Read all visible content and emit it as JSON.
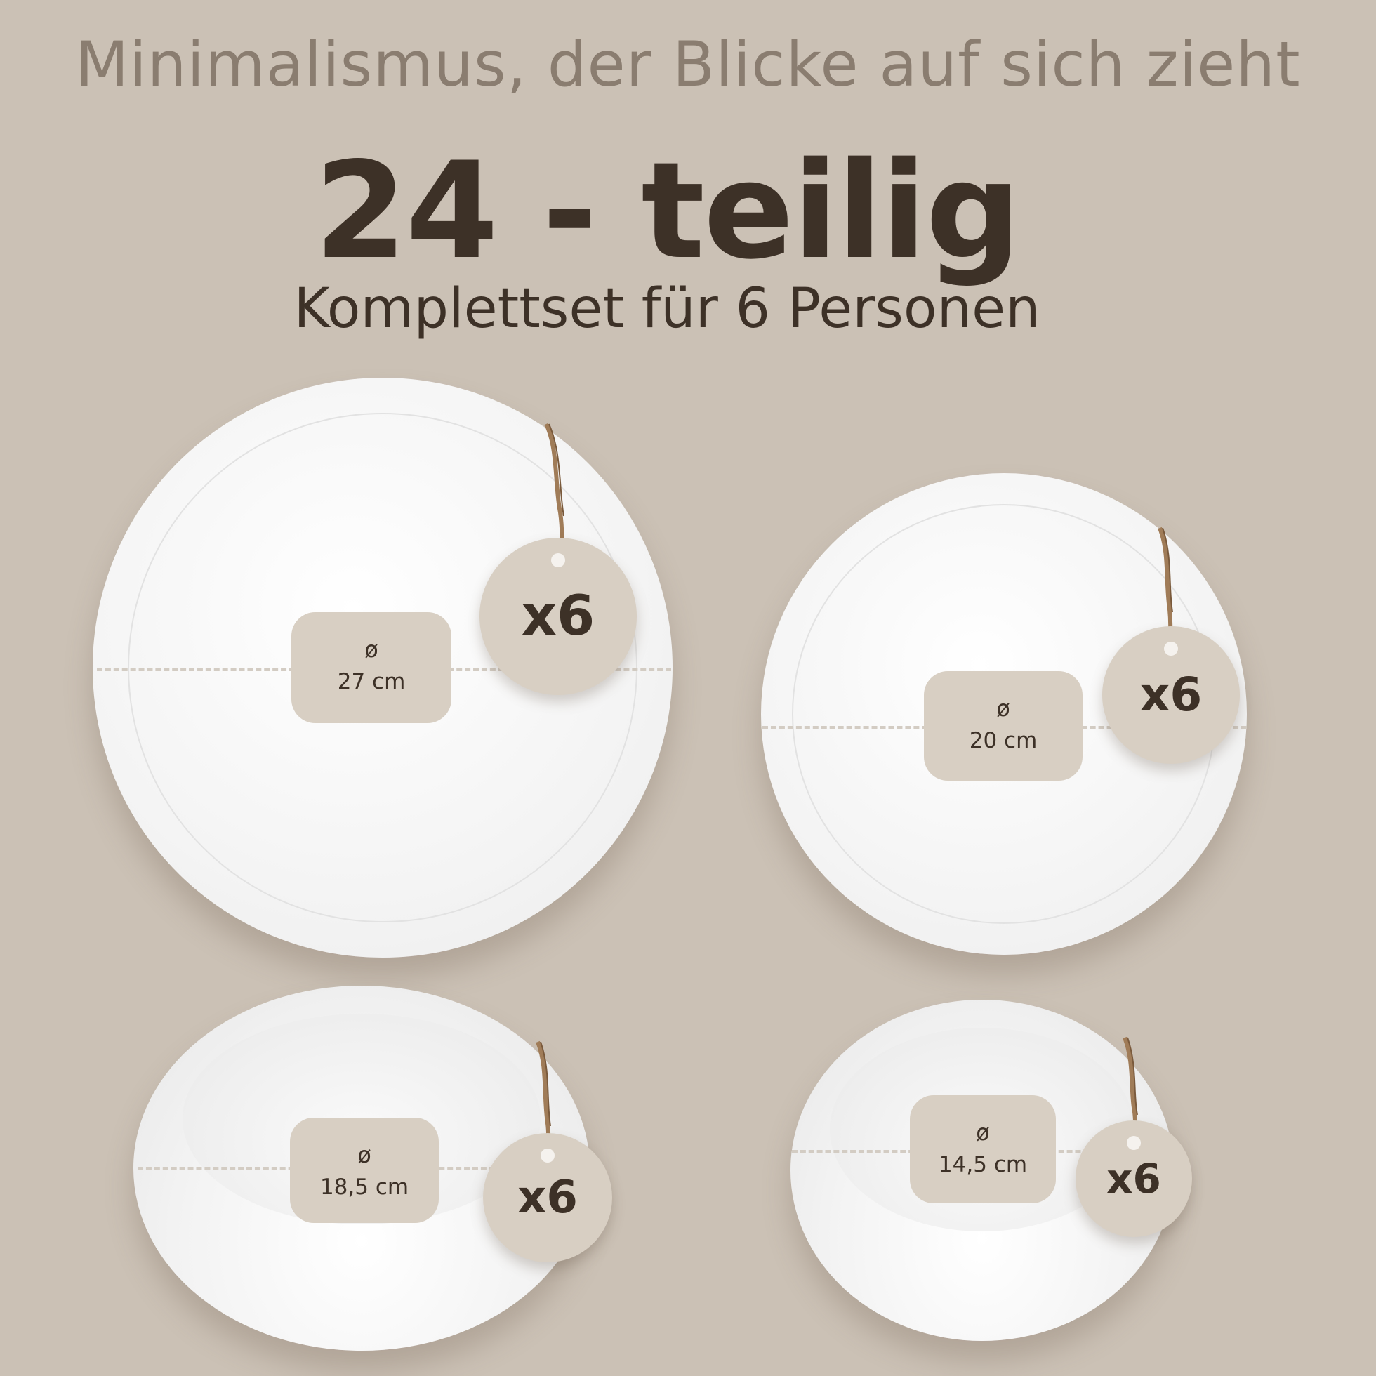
{
  "header": {
    "tagline": "Minimalismus, der Blicke auf sich zieht",
    "headline": "24 - teilig",
    "subline": "Komplettset für 6 Personen"
  },
  "items": [
    {
      "name": "large-plate",
      "symbol": "ø",
      "diameter": "27 cm",
      "count": "x6"
    },
    {
      "name": "small-plate",
      "symbol": "ø",
      "diameter": "20 cm",
      "count": "x6"
    },
    {
      "name": "large-bowl",
      "symbol": "ø",
      "diameter": "18,5 cm",
      "count": "x6"
    },
    {
      "name": "small-bowl",
      "symbol": "ø",
      "diameter": "14,5 cm",
      "count": "x6"
    }
  ],
  "colors": {
    "background": "#cbc1b5",
    "tagline": "#8a7d70",
    "headline": "#3d3127",
    "label": "#d8cfc3",
    "string": "#a07c58"
  }
}
